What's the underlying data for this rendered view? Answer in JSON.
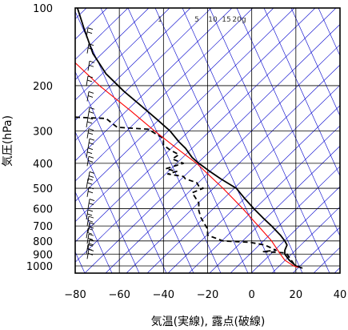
{
  "chart_data": {
    "type": "line",
    "title": "",
    "xlabel": "気温(実線), 露点(破線)",
    "ylabel": "気圧(hPa)",
    "x_ticks": [
      "−80",
      "−60",
      "−40",
      "−20",
      "0",
      "20",
      "40"
    ],
    "x_tick_values": [
      -80,
      -60,
      -40,
      -20,
      0,
      20,
      40
    ],
    "y_ticks": [
      "100",
      "200",
      "300",
      "400",
      "500",
      "600",
      "700",
      "800",
      "900",
      "1000"
    ],
    "y_tick_values": [
      100,
      200,
      300,
      400,
      500,
      600,
      700,
      800,
      900,
      1000
    ],
    "y_scale": "log",
    "xlim": [
      -80,
      40
    ],
    "ylim": [
      1050,
      100
    ],
    "mixing_ratio_labels": [
      "1",
      "5",
      "10",
      "15",
      "20g"
    ],
    "colors": {
      "temperature": "#000000",
      "dewpoint": "#000000",
      "parcel": "#ff0000",
      "isotherm_lines": "#0000cc",
      "grid": "#000000"
    },
    "series": [
      {
        "name": "",
        "style": "solid",
        "points": [
          [
            -79,
            100
          ],
          [
            -76,
            120
          ],
          [
            -72,
            150
          ],
          [
            -66,
            180
          ],
          [
            -58,
            210
          ],
          [
            -50,
            240
          ],
          [
            -43,
            270
          ],
          [
            -37,
            300
          ],
          [
            -33,
            330
          ],
          [
            -30,
            350
          ],
          [
            -27,
            380
          ],
          [
            -24,
            400
          ],
          [
            -19,
            430
          ],
          [
            -14,
            460
          ],
          [
            -7,
            500
          ],
          [
            -3,
            550
          ],
          [
            1,
            600
          ],
          [
            5,
            650
          ],
          [
            9,
            700
          ],
          [
            13,
            760
          ],
          [
            15,
            800
          ],
          [
            16,
            830
          ],
          [
            15,
            870
          ],
          [
            15,
            900
          ],
          [
            17,
            950
          ],
          [
            20,
            1000
          ],
          [
            23,
            1020
          ]
        ]
      },
      {
        "name": "",
        "style": "dashed",
        "points": [
          [
            -80,
            265
          ],
          [
            -66,
            268
          ],
          [
            -61,
            290
          ],
          [
            -47,
            295
          ],
          [
            -40,
            320
          ],
          [
            -40,
            340
          ],
          [
            -37,
            355
          ],
          [
            -33,
            370
          ],
          [
            -36,
            385
          ],
          [
            -31,
            400
          ],
          [
            -39,
            420
          ],
          [
            -34,
            430
          ],
          [
            -38,
            440
          ],
          [
            -31,
            450
          ],
          [
            -30,
            460
          ],
          [
            -25,
            475
          ],
          [
            -24,
            490
          ],
          [
            -22,
            500
          ],
          [
            -27,
            520
          ],
          [
            -24,
            570
          ],
          [
            -24,
            610
          ],
          [
            -23,
            650
          ],
          [
            -20,
            720
          ],
          [
            -20,
            760
          ],
          [
            -13,
            800
          ],
          [
            -1,
            810
          ],
          [
            6,
            830
          ],
          [
            11,
            870
          ],
          [
            5,
            880
          ],
          [
            15,
            890
          ],
          [
            16,
            900
          ],
          [
            19,
            980
          ],
          [
            21,
            1010
          ]
        ]
      },
      {
        "name": "",
        "style": "solid-thin",
        "points": [
          [
            -81,
            160
          ],
          [
            -69,
            200
          ],
          [
            -55,
            250
          ],
          [
            -44,
            300
          ],
          [
            -34,
            350
          ],
          [
            -25,
            400
          ],
          [
            -13,
            500
          ],
          [
            -4,
            600
          ],
          [
            3,
            700
          ],
          [
            9,
            800
          ],
          [
            13,
            900
          ],
          [
            15,
            950
          ],
          [
            19,
            1000
          ],
          [
            21,
            1013
          ]
        ]
      }
    ]
  }
}
